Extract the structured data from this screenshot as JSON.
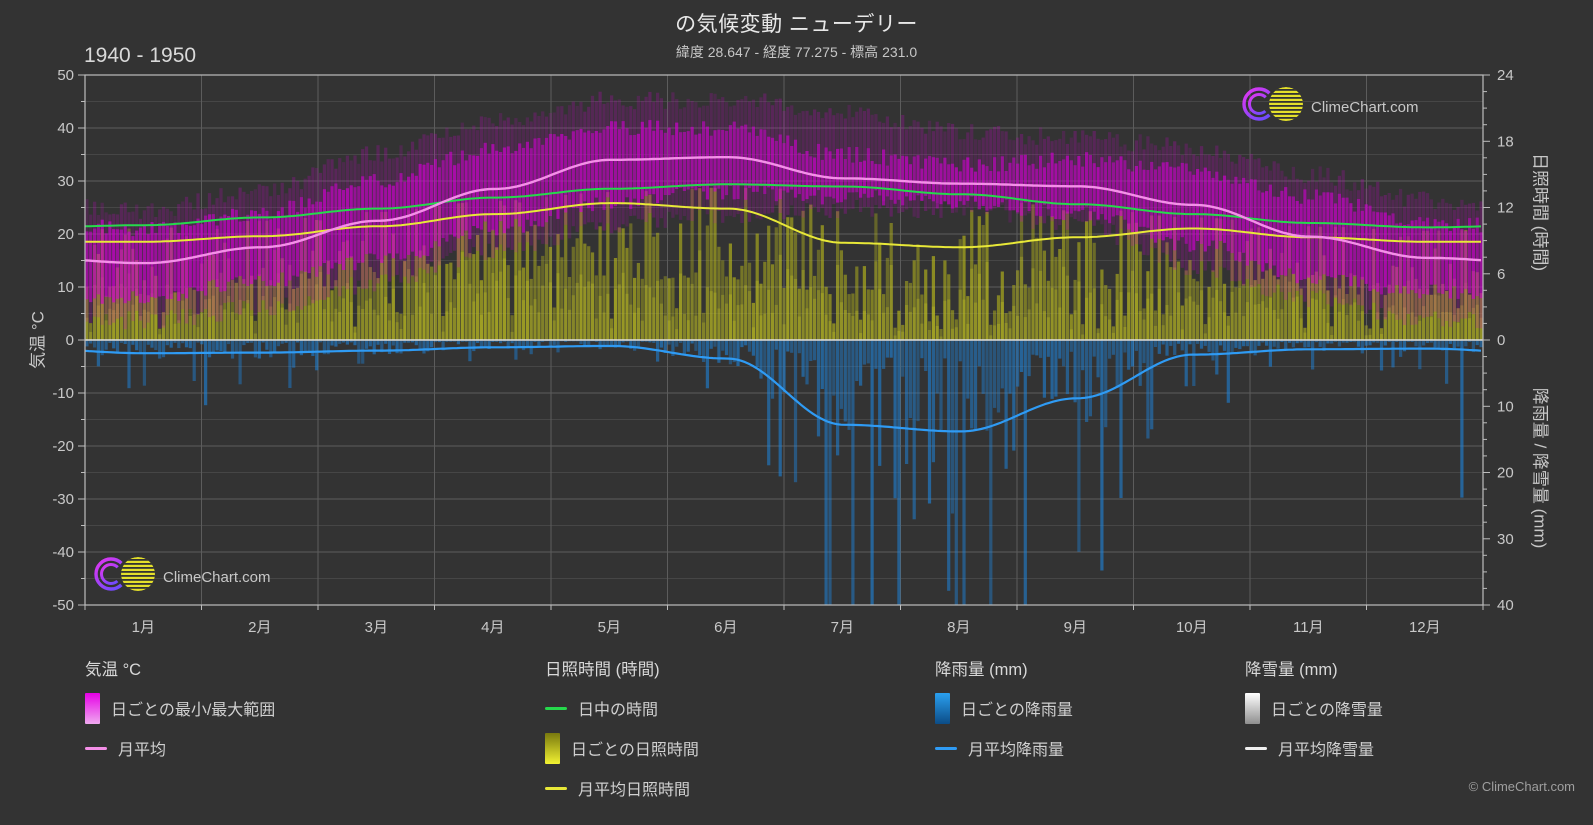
{
  "header": {
    "title": "の気候変動 ニューデリー",
    "subtitle": "緯度 28.647 - 経度 77.275 - 標高 231.0",
    "period": "1940 - 1950"
  },
  "branding": {
    "logo_text": "ClimeChart.com",
    "copyright": "© ClimeChart.com",
    "logo_text_color": "#2e9ff0",
    "logo_ring_color": "#e535f0",
    "logo_ring_color2": "#6a4cff",
    "logo_sun_color": "#e4e02a"
  },
  "axes": {
    "temp": {
      "label": "気温 °C",
      "ticks": [
        50,
        40,
        30,
        20,
        10,
        0,
        -10,
        -20,
        -30,
        -40,
        -50
      ],
      "min": -50,
      "max": 50,
      "minor_step": 5
    },
    "sunshine": {
      "label": "日照時間 (時間)",
      "ticks": [
        24,
        18,
        12,
        6,
        0
      ],
      "min": 0,
      "max": 24,
      "minor_step": 1.5
    },
    "precip": {
      "label": "降雨量 / 降雪量 (mm)",
      "ticks": [
        0,
        10,
        20,
        30,
        40
      ],
      "min": 0,
      "max": 40,
      "minor_step": 2.5
    },
    "x": {
      "months": [
        "1月",
        "2月",
        "3月",
        "4月",
        "5月",
        "6月",
        "7月",
        "8月",
        "9月",
        "10月",
        "11月",
        "12月"
      ]
    }
  },
  "legend": {
    "groups": [
      {
        "header": "気温 °C",
        "items": [
          {
            "type": "block",
            "label": "日ごとの最小/最大範囲",
            "color_from": "#e600e6",
            "color_to": "#efa9ef"
          },
          {
            "type": "line",
            "label": "月平均",
            "color": "#f48fe8"
          }
        ]
      },
      {
        "header": "日照時間 (時間)",
        "items": [
          {
            "type": "line",
            "label": "日中の時間",
            "color": "#26d94c"
          },
          {
            "type": "block",
            "label": "日ごとの日照時間",
            "color_from": "#78780e",
            "color_to": "#f2f232"
          },
          {
            "type": "line",
            "label": "月平均日照時間",
            "color": "#e8e838"
          }
        ]
      },
      {
        "header": "降雨量 (mm)",
        "items": [
          {
            "type": "block",
            "label": "日ごとの降雨量",
            "color_from": "#2aa0f0",
            "color_to": "#0c4c86"
          },
          {
            "type": "line",
            "label": "月平均降雨量",
            "color": "#2f9bf4"
          }
        ]
      },
      {
        "header": "降雪量 (mm)",
        "items": [
          {
            "type": "block",
            "label": "日ごとの降雪量",
            "color_from": "#ffffff",
            "color_to": "#8f8f8f"
          },
          {
            "type": "line",
            "label": "月平均降雪量",
            "color": "#f0f0f0"
          }
        ]
      }
    ]
  },
  "colors": {
    "bg": "#333333",
    "grid_major": "#5c5c5c",
    "grid_minor": "#464646",
    "axis_line": "#bdbdbd",
    "zero_line": "#e0e0e0",
    "tick_text": "#c8c8c8"
  },
  "chart_data": {
    "type": "area",
    "subtype": "climate-composite",
    "title": "の気候変動 ニューデリー (1940 - 1950)",
    "xlabel": "月",
    "ylabel_left": "気温 °C",
    "ylabel_right_top": "日照時間 (時間)",
    "ylabel_right_bottom": "降雨量 / 降雪量 (mm)",
    "ylim_temp": [
      -50,
      50
    ],
    "ylim_sunshine": [
      0,
      24
    ],
    "ylim_precip": [
      0,
      40
    ],
    "categories": [
      "1月",
      "2月",
      "3月",
      "4月",
      "5月",
      "6月",
      "7月",
      "8月",
      "9月",
      "10月",
      "11月",
      "12月"
    ],
    "series": [
      {
        "name": "気温 日ごとの最小/最大範囲",
        "render": "band",
        "axis": "temp",
        "color": "#d000d0",
        "monthly_mean_max": [
          21,
          24,
          30,
          36,
          40,
          40,
          35,
          33,
          34,
          32,
          27,
          22
        ],
        "monthly_mean_min": [
          8,
          11,
          15,
          21,
          26,
          28,
          27,
          26,
          24,
          18,
          12,
          9
        ],
        "monthly_record_high": [
          26,
          30,
          37,
          43,
          47,
          47,
          45,
          41,
          40,
          38,
          33,
          28
        ],
        "monthly_record_low": [
          2,
          4,
          9,
          15,
          20,
          22,
          23,
          23,
          20,
          12,
          6,
          2
        ]
      },
      {
        "name": "気温 月平均 (°C)",
        "render": "line",
        "axis": "temp",
        "color": "#f48fe8",
        "values": [
          14.5,
          17.5,
          22.5,
          28.5,
          34,
          34.5,
          30.5,
          29.5,
          29,
          25.5,
          19.5,
          15.5
        ]
      },
      {
        "name": "日中の時間 (時間)",
        "render": "line",
        "axis": "sunshine",
        "color": "#26d94c",
        "values": [
          10.4,
          11.1,
          11.9,
          12.9,
          13.7,
          14.1,
          13.9,
          13.2,
          12.3,
          11.4,
          10.6,
          10.2
        ]
      },
      {
        "name": "日ごとの日照時間 (時間)",
        "render": "bars-up",
        "axis": "sunshine",
        "color": "#b5b51c",
        "values": [
          8.9,
          9.4,
          10.3,
          11.4,
          12.4,
          11.9,
          8.8,
          8.4,
          9.3,
          10.1,
          9.3,
          8.9
        ]
      },
      {
        "name": "月平均日照時間 (時間)",
        "render": "line",
        "axis": "sunshine",
        "color": "#e8e838",
        "values": [
          8.9,
          9.4,
          10.3,
          11.4,
          12.4,
          11.9,
          8.8,
          8.4,
          9.3,
          10.1,
          9.3,
          8.9
        ]
      },
      {
        "name": "日ごとの降雨量 (mm)",
        "render": "bars-down",
        "axis": "precip",
        "color": "#1d86e0",
        "values": [
          2.0,
          1.9,
          1.6,
          1.1,
          0.9,
          2.8,
          12.8,
          13.8,
          8.8,
          2.2,
          1.4,
          1.3
        ]
      },
      {
        "name": "月平均降雨量 (mm)",
        "render": "line",
        "axis": "precip",
        "color": "#2f9bf4",
        "values": [
          2.0,
          1.9,
          1.6,
          1.1,
          0.9,
          2.8,
          12.8,
          13.8,
          8.8,
          2.2,
          1.4,
          1.3
        ]
      },
      {
        "name": "日ごとの降雪量 (mm)",
        "render": "bars-down",
        "axis": "precip",
        "color": "#dddddd",
        "values": [
          0,
          0,
          0,
          0,
          0,
          0,
          0,
          0,
          0,
          0,
          0,
          0
        ]
      },
      {
        "name": "月平均降雪量 (mm)",
        "render": "line",
        "axis": "precip",
        "color": "#f0f0f0",
        "values": [
          0,
          0,
          0,
          0,
          0,
          0,
          0,
          0,
          0,
          0,
          0,
          0
        ]
      }
    ]
  }
}
